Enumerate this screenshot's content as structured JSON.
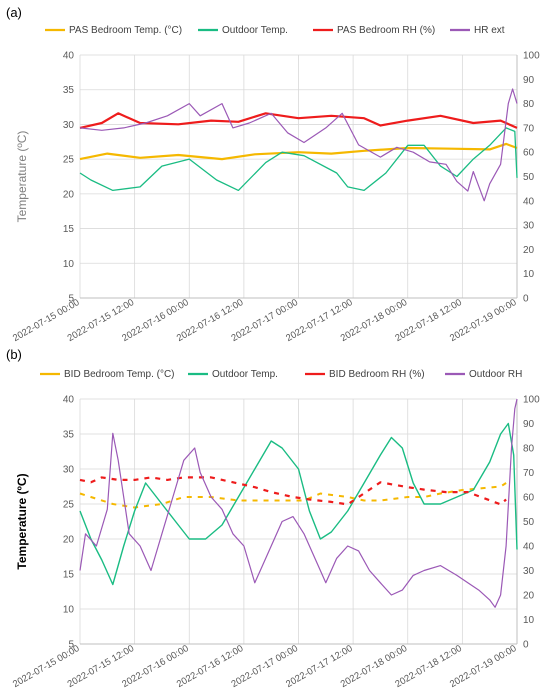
{
  "chart_data": [
    {
      "panel_label": "(a)",
      "type": "line",
      "ylabel": "Temperature (ºC)",
      "ylim": [
        5,
        40
      ],
      "yticks": [
        "5",
        "10",
        "15",
        "20",
        "25",
        "30",
        "35",
        "40"
      ],
      "y2lim": [
        0,
        100
      ],
      "y2ticks": [
        "0",
        "10",
        "20",
        "30",
        "40",
        "50",
        "60",
        "70",
        "80",
        "90",
        "100"
      ],
      "xlim": [
        0,
        4
      ],
      "xticks": [
        "2022-07-15 00:00",
        "2022-07-15 12:00",
        "2022-07-16 00:00",
        "2022-07-16 12:00",
        "2022-07-17 00:00",
        "2022-07-17 12:00",
        "2022-07-18 00:00",
        "2022-07-18 12:00",
        "2022-07-19 00:00"
      ],
      "grid": true,
      "legend_position": "top",
      "series": [
        {
          "name": "PAS Bedroom Temp. (°C)",
          "axis": "left",
          "color": "#f5b800",
          "width": 2.2,
          "points": [
            [
              0,
              25
            ],
            [
              0.25,
              25.8
            ],
            [
              0.55,
              25.2
            ],
            [
              0.9,
              25.6
            ],
            [
              1.3,
              25
            ],
            [
              1.6,
              25.7
            ],
            [
              2,
              26
            ],
            [
              2.3,
              25.8
            ],
            [
              2.6,
              26.2
            ],
            [
              3,
              26.6
            ],
            [
              3.4,
              26.5
            ],
            [
              3.75,
              26.4
            ],
            [
              3.9,
              27.2
            ],
            [
              4,
              26.6
            ]
          ]
        },
        {
          "name": "Outdoor Temp.",
          "axis": "left",
          "color": "#1abc83",
          "width": 1.3,
          "points": [
            [
              0,
              23
            ],
            [
              0.1,
              22
            ],
            [
              0.3,
              20.5
            ],
            [
              0.55,
              21
            ],
            [
              0.75,
              24
            ],
            [
              1,
              25
            ],
            [
              1.25,
              22
            ],
            [
              1.45,
              20.5
            ],
            [
              1.7,
              24.5
            ],
            [
              1.85,
              26
            ],
            [
              2.05,
              25.5
            ],
            [
              2.35,
              23
            ],
            [
              2.45,
              21
            ],
            [
              2.6,
              20.5
            ],
            [
              2.8,
              23
            ],
            [
              3,
              27
            ],
            [
              3.15,
              27
            ],
            [
              3.3,
              24
            ],
            [
              3.45,
              22.5
            ],
            [
              3.6,
              25
            ],
            [
              3.75,
              27
            ],
            [
              3.9,
              29.5
            ],
            [
              3.98,
              29
            ],
            [
              4,
              22.3
            ]
          ]
        },
        {
          "name": "PAS Bedroom RH (%)",
          "axis": "right",
          "color": "#ee1c1c",
          "width": 2.2,
          "points": [
            [
              0,
              70
            ],
            [
              0.2,
              72
            ],
            [
              0.35,
              76
            ],
            [
              0.55,
              72
            ],
            [
              0.9,
              71.5
            ],
            [
              1.2,
              73
            ],
            [
              1.45,
              72.5
            ],
            [
              1.7,
              76
            ],
            [
              2,
              74
            ],
            [
              2.3,
              75
            ],
            [
              2.6,
              74
            ],
            [
              2.75,
              71
            ],
            [
              3,
              73
            ],
            [
              3.3,
              75
            ],
            [
              3.6,
              72
            ],
            [
              3.85,
              73
            ],
            [
              4,
              70
            ]
          ]
        },
        {
          "name": "HR ext",
          "axis": "right",
          "color": "#9b59b6",
          "width": 1.2,
          "points": [
            [
              0,
              70
            ],
            [
              0.2,
              69
            ],
            [
              0.4,
              70
            ],
            [
              0.6,
              72
            ],
            [
              0.8,
              75
            ],
            [
              1,
              80
            ],
            [
              1.1,
              75
            ],
            [
              1.3,
              80
            ],
            [
              1.4,
              70
            ],
            [
              1.55,
              72
            ],
            [
              1.75,
              76
            ],
            [
              1.9,
              68
            ],
            [
              2.05,
              64
            ],
            [
              2.25,
              70
            ],
            [
              2.4,
              76
            ],
            [
              2.55,
              63
            ],
            [
              2.75,
              58
            ],
            [
              2.9,
              62
            ],
            [
              3.05,
              60
            ],
            [
              3.2,
              56
            ],
            [
              3.35,
              55
            ],
            [
              3.45,
              48
            ],
            [
              3.55,
              44
            ],
            [
              3.6,
              52
            ],
            [
              3.7,
              40
            ],
            [
              3.75,
              47
            ],
            [
              3.85,
              55
            ],
            [
              3.92,
              80
            ],
            [
              3.96,
              86
            ],
            [
              4,
              80
            ]
          ]
        }
      ]
    },
    {
      "panel_label": "(b)",
      "type": "line",
      "ylabel": "Temperature (ºC)",
      "ylim": [
        5,
        40
      ],
      "yticks": [
        "5",
        "10",
        "15",
        "20",
        "25",
        "30",
        "35",
        "40"
      ],
      "y2lim": [
        0,
        100
      ],
      "y2ticks": [
        "0",
        "10",
        "20",
        "30",
        "40",
        "50",
        "60",
        "70",
        "80",
        "90",
        "100"
      ],
      "xlim": [
        0,
        4
      ],
      "xticks": [
        "2022-07-15 00:00",
        "2022-07-15 12:00",
        "2022-07-16 00:00",
        "2022-07-16 12:00",
        "2022-07-17 00:00",
        "2022-07-17 12:00",
        "2022-07-18 00:00",
        "2022-07-18 12:00",
        "2022-07-19 00:00"
      ],
      "grid": true,
      "legend_position": "top",
      "series": [
        {
          "name": "BID Bedroom Temp. (°C)",
          "axis": "left",
          "color": "#f5b800",
          "width": 2.0,
          "dashed": true,
          "points": [
            [
              0,
              26.5
            ],
            [
              0.1,
              26
            ],
            [
              0.3,
              25
            ],
            [
              0.5,
              24.5
            ],
            [
              0.75,
              25
            ],
            [
              0.95,
              26
            ],
            [
              1.2,
              26
            ],
            [
              1.45,
              25.5
            ],
            [
              1.6,
              25.5
            ],
            [
              1.95,
              25.5
            ],
            [
              2.05,
              25.5
            ],
            [
              2.2,
              26.5
            ],
            [
              2.45,
              26
            ],
            [
              2.6,
              25.5
            ],
            [
              2.75,
              25.5
            ],
            [
              3,
              26
            ],
            [
              3.15,
              26
            ],
            [
              3.3,
              26.5
            ],
            [
              3.5,
              27
            ],
            [
              3.85,
              27.5
            ],
            [
              3.9,
              28
            ]
          ]
        },
        {
          "name": "Outdoor Temp.",
          "axis": "left",
          "color": "#1abc83",
          "width": 1.4,
          "points": [
            [
              0,
              24
            ],
            [
              0.1,
              20
            ],
            [
              0.2,
              17
            ],
            [
              0.3,
              13.5
            ],
            [
              0.4,
              19
            ],
            [
              0.5,
              24
            ],
            [
              0.6,
              28
            ],
            [
              0.75,
              25
            ],
            [
              0.9,
              22
            ],
            [
              1.0,
              20
            ],
            [
              1.15,
              20
            ],
            [
              1.3,
              22
            ],
            [
              1.45,
              26
            ],
            [
              1.6,
              30
            ],
            [
              1.75,
              34
            ],
            [
              1.85,
              33
            ],
            [
              2,
              30
            ],
            [
              2.1,
              24
            ],
            [
              2.2,
              20
            ],
            [
              2.3,
              21
            ],
            [
              2.45,
              24
            ],
            [
              2.6,
              28
            ],
            [
              2.75,
              32
            ],
            [
              2.85,
              34.5
            ],
            [
              2.95,
              33
            ],
            [
              3.05,
              28
            ],
            [
              3.15,
              25
            ],
            [
              3.3,
              25
            ],
            [
              3.45,
              26
            ],
            [
              3.6,
              27
            ],
            [
              3.75,
              31
            ],
            [
              3.85,
              35
            ],
            [
              3.92,
              36.5
            ],
            [
              3.97,
              32
            ],
            [
              4,
              18.5
            ]
          ]
        },
        {
          "name": "BID Bedroom RH (%)",
          "axis": "right",
          "color": "#ee1c1c",
          "width": 2.2,
          "dashed": true,
          "points": [
            [
              0,
              67
            ],
            [
              0.1,
              66
            ],
            [
              0.2,
              68
            ],
            [
              0.35,
              67
            ],
            [
              0.5,
              67
            ],
            [
              0.65,
              68
            ],
            [
              0.8,
              67
            ],
            [
              0.95,
              68
            ],
            [
              1.2,
              68
            ],
            [
              1.6,
              64
            ],
            [
              1.75,
              62
            ],
            [
              1.95,
              60
            ],
            [
              2.1,
              59
            ],
            [
              2.3,
              58
            ],
            [
              2.45,
              57
            ],
            [
              2.75,
              66
            ],
            [
              3,
              64
            ],
            [
              3.15,
              63
            ],
            [
              3.35,
              62
            ],
            [
              3.55,
              62
            ],
            [
              3.85,
              57
            ],
            [
              3.9,
              59
            ]
          ]
        },
        {
          "name": "Outdoor RH",
          "axis": "right",
          "color": "#9b59b6",
          "width": 1.2,
          "points": [
            [
              0,
              30
            ],
            [
              0.05,
              45
            ],
            [
              0.15,
              40
            ],
            [
              0.25,
              55
            ],
            [
              0.3,
              86
            ],
            [
              0.35,
              75
            ],
            [
              0.45,
              45
            ],
            [
              0.55,
              40
            ],
            [
              0.65,
              30
            ],
            [
              0.75,
              45
            ],
            [
              0.85,
              60
            ],
            [
              0.95,
              75
            ],
            [
              1.05,
              80
            ],
            [
              1.1,
              70
            ],
            [
              1.2,
              60
            ],
            [
              1.3,
              55
            ],
            [
              1.4,
              45
            ],
            [
              1.5,
              40
            ],
            [
              1.6,
              25
            ],
            [
              1.65,
              30
            ],
            [
              1.75,
              40
            ],
            [
              1.85,
              50
            ],
            [
              1.95,
              52
            ],
            [
              2.05,
              45
            ],
            [
              2.15,
              35
            ],
            [
              2.25,
              25
            ],
            [
              2.35,
              35
            ],
            [
              2.45,
              40
            ],
            [
              2.55,
              38
            ],
            [
              2.65,
              30
            ],
            [
              2.75,
              25
            ],
            [
              2.85,
              20
            ],
            [
              2.95,
              22
            ],
            [
              3.05,
              28
            ],
            [
              3.15,
              30
            ],
            [
              3.3,
              32
            ],
            [
              3.45,
              28
            ],
            [
              3.55,
              25
            ],
            [
              3.65,
              22
            ],
            [
              3.75,
              18
            ],
            [
              3.8,
              15
            ],
            [
              3.85,
              20
            ],
            [
              3.9,
              40
            ],
            [
              3.95,
              80
            ],
            [
              3.98,
              96
            ],
            [
              4,
              100
            ]
          ]
        }
      ]
    }
  ]
}
